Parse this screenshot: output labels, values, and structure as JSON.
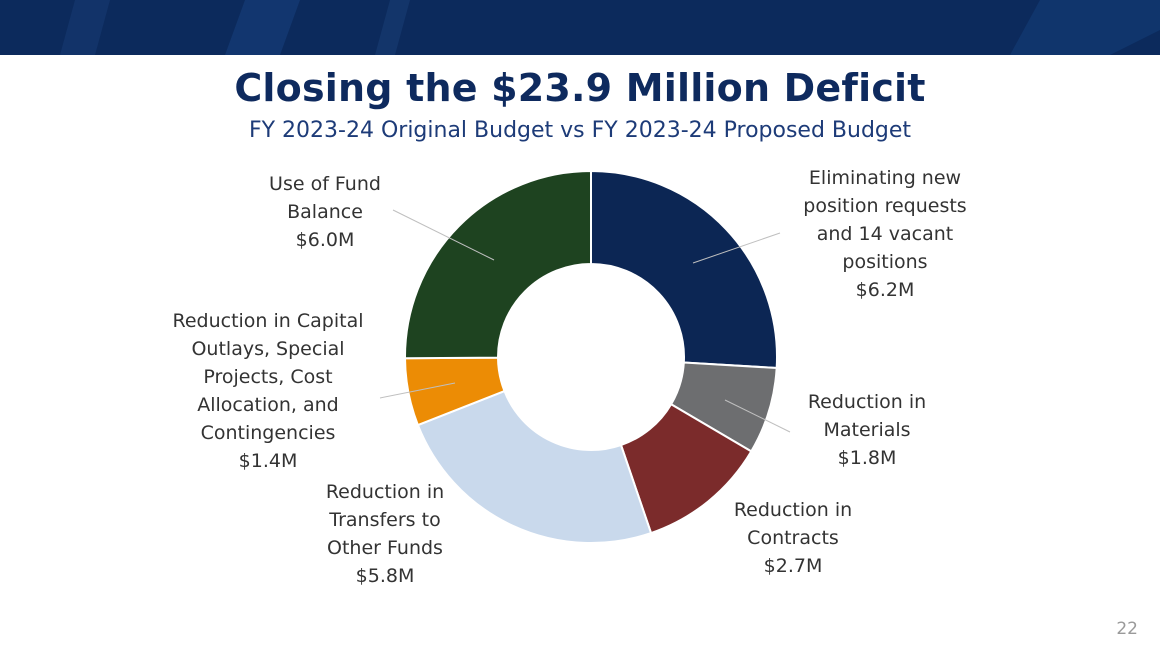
{
  "slide": {
    "title": "Closing the $23.9 Million Deficit",
    "subtitle": "FY 2023-24 Original Budget vs FY 2023-24 Proposed Budget",
    "page_number": "22",
    "banner_color": "#0c2a5c"
  },
  "chart_data": {
    "type": "pie",
    "variant": "donut",
    "title": "Closing the $23.9 Million Deficit",
    "subtitle": "FY 2023-24 Original Budget vs FY 2023-24 Proposed Budget",
    "unit": "$M",
    "slices": [
      {
        "label_lines": [
          "Eliminating new",
          "position requests",
          "and 14 vacant",
          "positions"
        ],
        "value": 6.2,
        "value_label": "$6.2M",
        "color": "#0c2654"
      },
      {
        "label_lines": [
          "Reduction in",
          "Materials"
        ],
        "value": 1.8,
        "value_label": "$1.8M",
        "color": "#6d6e70"
      },
      {
        "label_lines": [
          "Reduction in",
          "Contracts"
        ],
        "value": 2.7,
        "value_label": "$2.7M",
        "color": "#7b2b2b"
      },
      {
        "label_lines": [
          "Reduction in",
          "Transfers to",
          "Other Funds"
        ],
        "value": 5.8,
        "value_label": "$5.8M",
        "color": "#c9d9ec"
      },
      {
        "label_lines": [
          "Reduction in Capital",
          "Outlays, Special",
          "Projects, Cost",
          "Allocation, and",
          "Contingencies"
        ],
        "value": 1.4,
        "value_label": "$1.4M",
        "color": "#ec8c05"
      },
      {
        "label_lines": [
          "Use of Fund",
          "Balance"
        ],
        "value": 6.0,
        "value_label": "$6.0M",
        "color": "#1e4320"
      }
    ]
  }
}
